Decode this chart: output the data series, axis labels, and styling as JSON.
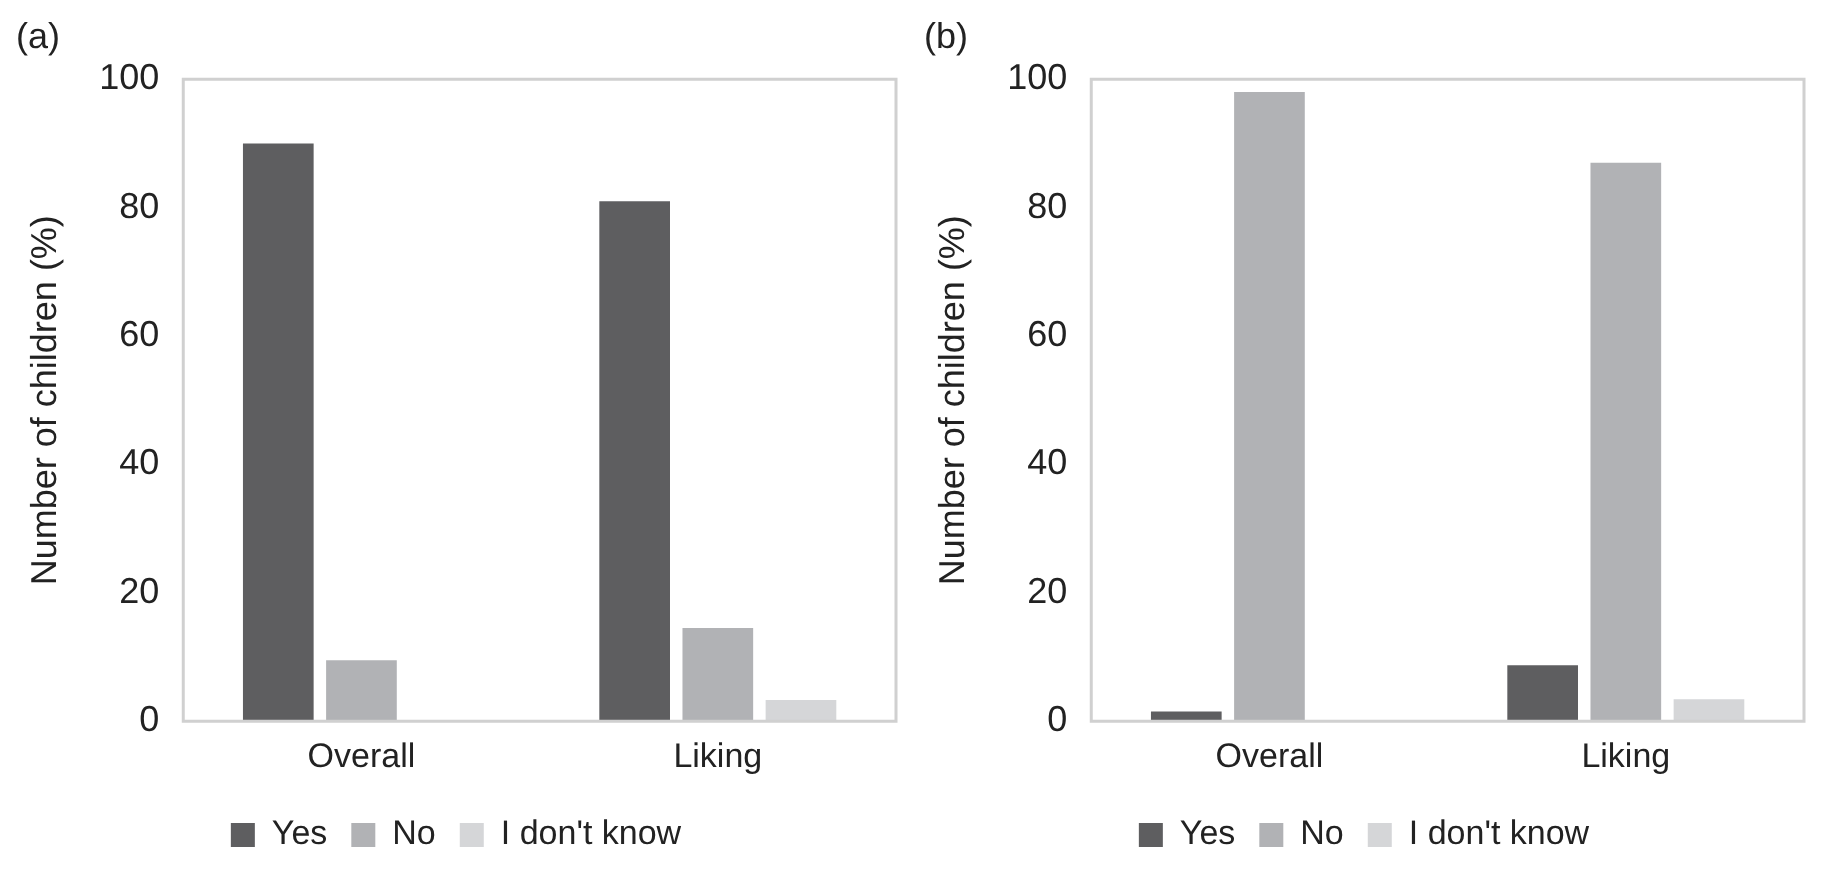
{
  "chart_data": [
    {
      "type": "bar",
      "title": "(a)",
      "ylabel": "Number of children (%)",
      "categories": [
        "Overall",
        "Liking"
      ],
      "series": [
        {
          "name": "Yes",
          "color": "#5e5e60",
          "values": [
            90,
            81
          ]
        },
        {
          "name": "No",
          "color": "#b1b2b5",
          "values": [
            9.5,
            14.5
          ]
        },
        {
          "name": "I don't know",
          "color": "#d5d6d8",
          "values": [
            0,
            3.3
          ]
        }
      ],
      "ylim": [
        0,
        100
      ],
      "yticks": [
        0,
        20,
        40,
        60,
        80,
        100
      ],
      "grid": false,
      "legend": "bottom"
    },
    {
      "type": "bar",
      "title": "(b)",
      "ylabel": "Number of children (%)",
      "categories": [
        "Overall",
        "Liking"
      ],
      "series": [
        {
          "name": "Yes",
          "color": "#5e5e60",
          "values": [
            1.5,
            8.7
          ]
        },
        {
          "name": "No",
          "color": "#b1b2b5",
          "values": [
            98,
            87
          ]
        },
        {
          "name": "I don't know",
          "color": "#d5d6d8",
          "values": [
            0,
            3.4
          ]
        }
      ],
      "ylim": [
        0,
        100
      ],
      "yticks": [
        0,
        20,
        40,
        60,
        80,
        100
      ],
      "grid": false,
      "legend": "bottom"
    }
  ]
}
